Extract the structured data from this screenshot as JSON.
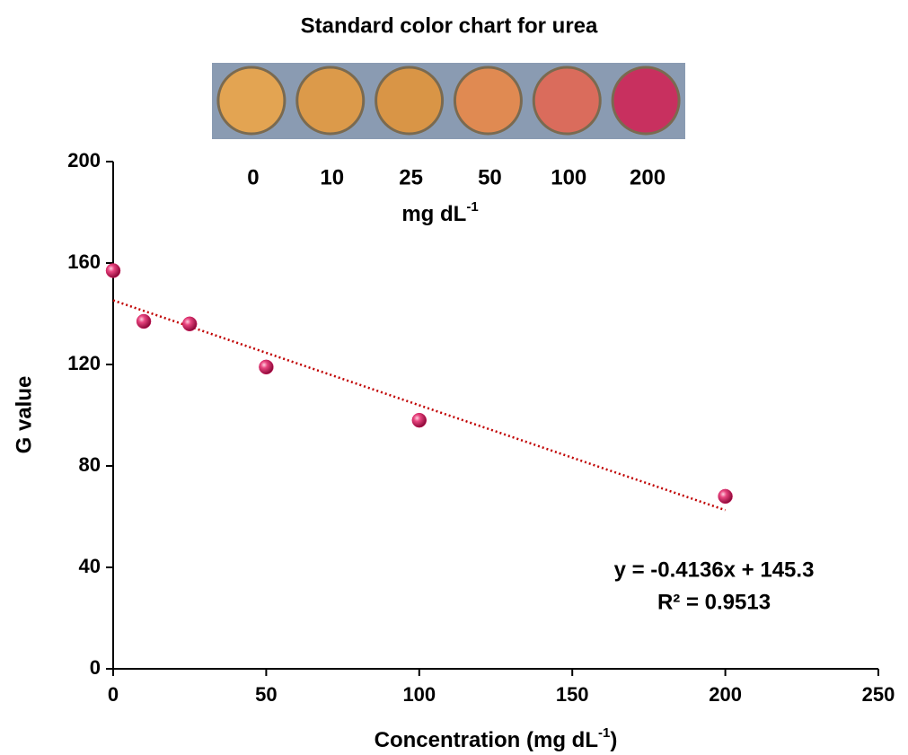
{
  "chart_data": {
    "type": "scatter",
    "x": [
      0,
      10,
      25,
      50,
      100,
      200
    ],
    "values": [
      157,
      137,
      136,
      119,
      98,
      68
    ],
    "color": "#d81b60",
    "xlim": [
      0,
      250
    ],
    "xticks": [
      0,
      50,
      100,
      150,
      200,
      250
    ],
    "ylim": [
      0,
      200
    ],
    "yticks": [
      0,
      40,
      80,
      120,
      160,
      200
    ],
    "xlabel": {
      "text": "Concentration (mg dL",
      "sup": "-1",
      "suffix": ")"
    },
    "ylabel": "G value",
    "trendline": {
      "slope": -0.4136,
      "intercept": 145.3,
      "color": "#c00000",
      "label": "y = -0.4136x + 145.3",
      "r2_label": "R² = 0.9513"
    },
    "inset": {
      "title": "Standard color chart for urea",
      "labels": [
        "0",
        "10",
        "25",
        "50",
        "100",
        "200"
      ],
      "colors": [
        "#e3a452",
        "#dc9a4a",
        "#d99546",
        "#e08a52",
        "#da6c5c",
        "#c8305f"
      ],
      "background": "#8a9bb2",
      "unit": "mg dL",
      "unit_sup": "-1"
    }
  }
}
